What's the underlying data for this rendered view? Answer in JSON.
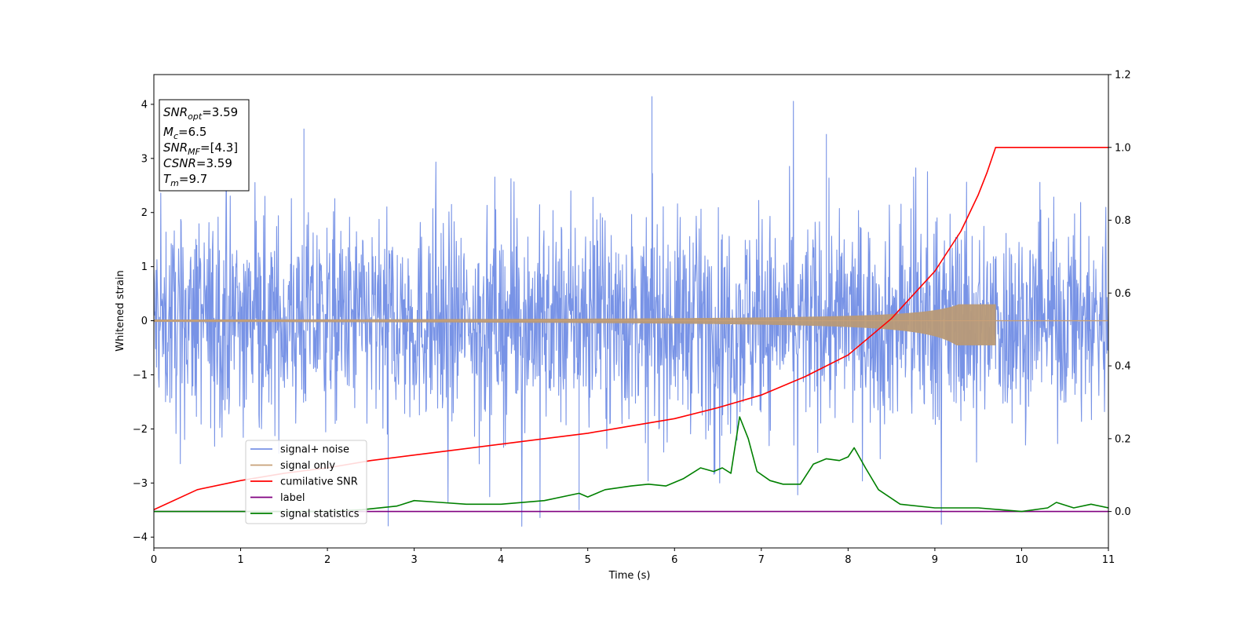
{
  "chart_data": {
    "type": "line",
    "xlabel": "Time (s)",
    "ylabel": "Whitened strain",
    "xlim": [
      0,
      11
    ],
    "ylim": [
      -4.2,
      4.55
    ],
    "y2lim": [
      -0.1,
      1.2
    ],
    "grid": false,
    "legend_position": "lower-left",
    "x_ticks": [
      "0",
      "1",
      "2",
      "3",
      "4",
      "5",
      "6",
      "7",
      "8",
      "9",
      "10",
      "11"
    ],
    "y_ticks": [
      "−4",
      "−3",
      "−2",
      "−1",
      "0",
      "1",
      "2",
      "3",
      "4"
    ],
    "y_tick_values": [
      -4,
      -3,
      -2,
      -1,
      0,
      1,
      2,
      3,
      4
    ],
    "y2_ticks": [
      "0.0",
      "0.2",
      "0.4",
      "0.6",
      "0.8",
      "1.0",
      "1.2"
    ],
    "y2_tick_values": [
      0.0,
      0.2,
      0.4,
      0.6,
      0.8,
      1.0,
      1.2
    ],
    "annotation": [
      {
        "base": "SNR",
        "sub": "opt",
        "rest": "=3.59"
      },
      {
        "base": "M",
        "sub": "c",
        "rest": "=6.5"
      },
      {
        "base": "SNR",
        "sub": "MF",
        "rest": "=[4.3]"
      },
      {
        "base": "CSNR",
        "sub": "",
        "rest": "=3.59"
      },
      {
        "base": "T",
        "sub": "m",
        "rest": "=9.7"
      }
    ],
    "series": [
      {
        "name": "signal+ noise",
        "color": "#7893e6",
        "axis": "left",
        "description_values": {
          "x_range": [
            0,
            11
          ],
          "typical_band": [
            -2.2,
            2.2
          ],
          "max_peak": 4.15,
          "min_peak": -3.8
        }
      },
      {
        "name": "signal only",
        "color": "#c8a078",
        "axis": "left",
        "chirp": {
          "t_start": 0,
          "t_merge": 9.7,
          "amp_at_merge_high": 0.3,
          "amp_at_merge_low": -0.45
        }
      },
      {
        "name": "cumilative SNR",
        "color": "#ff0000",
        "axis": "right",
        "x": [
          0,
          0.5,
          1,
          1.5,
          2,
          2.5,
          3,
          3.5,
          4,
          4.5,
          5,
          5.5,
          6,
          6.5,
          7,
          7.5,
          8,
          8.5,
          9,
          9.3,
          9.5,
          9.6,
          9.7,
          11
        ],
        "y": [
          0.005,
          0.06,
          0.085,
          0.105,
          0.12,
          0.14,
          0.155,
          0.17,
          0.185,
          0.2,
          0.215,
          0.235,
          0.255,
          0.285,
          0.32,
          0.37,
          0.43,
          0.53,
          0.66,
          0.77,
          0.87,
          0.93,
          1.0,
          1.0
        ]
      },
      {
        "name": "label",
        "color": "#800080",
        "axis": "right",
        "x": [
          0,
          11
        ],
        "y": [
          0,
          0
        ]
      },
      {
        "name": "signal statistics",
        "color": "#008000",
        "axis": "right",
        "x": [
          0,
          1.0,
          2.0,
          2.4,
          2.8,
          3.0,
          3.3,
          3.6,
          4.0,
          4.5,
          4.9,
          5.0,
          5.2,
          5.5,
          5.7,
          5.9,
          6.1,
          6.3,
          6.45,
          6.55,
          6.65,
          6.75,
          6.85,
          6.95,
          7.1,
          7.25,
          7.45,
          7.6,
          7.75,
          7.9,
          8.0,
          8.07,
          8.2,
          8.35,
          8.6,
          9.0,
          9.5,
          10.0,
          10.3,
          10.4,
          10.6,
          10.8,
          11.0
        ],
        "y": [
          0.0,
          0.0,
          0.0,
          0.005,
          0.015,
          0.03,
          0.025,
          0.02,
          0.02,
          0.03,
          0.05,
          0.04,
          0.06,
          0.07,
          0.075,
          0.07,
          0.09,
          0.12,
          0.11,
          0.12,
          0.105,
          0.26,
          0.2,
          0.11,
          0.085,
          0.075,
          0.075,
          0.13,
          0.145,
          0.14,
          0.15,
          0.175,
          0.12,
          0.06,
          0.02,
          0.01,
          0.01,
          0.0,
          0.01,
          0.025,
          0.01,
          0.02,
          0.01
        ]
      }
    ]
  }
}
